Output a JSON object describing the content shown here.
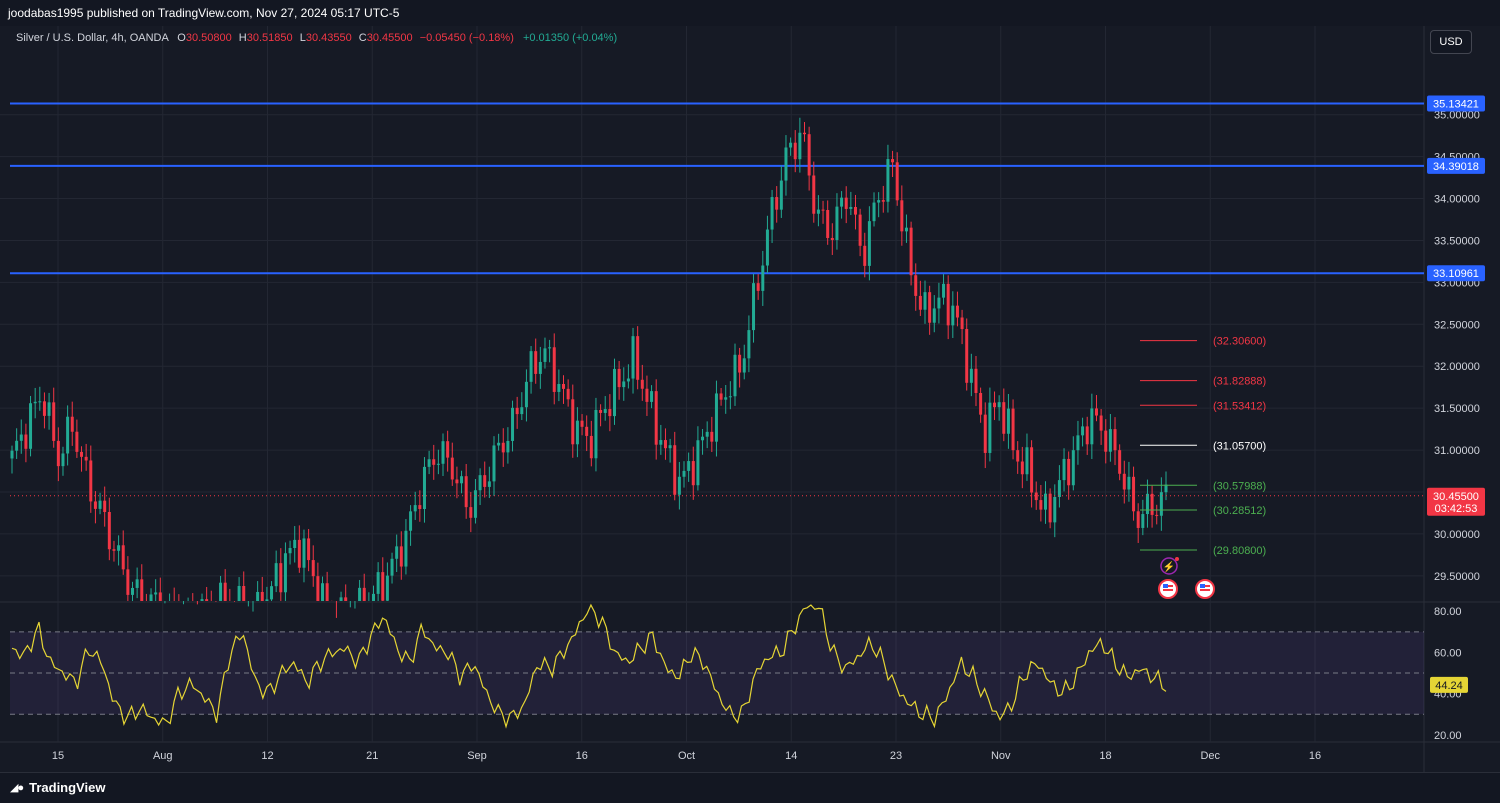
{
  "header": {
    "publisher": "joodabas1995 published on TradingView.com, Nov 27, 2024 05:17 UTC-5"
  },
  "legend": {
    "title": "Silver / U.S. Dollar, 4h, OANDA",
    "open_label": "O",
    "open": "30.50800",
    "high_label": "H",
    "high": "30.51850",
    "low_label": "L",
    "low": "30.43550",
    "close_label": "C",
    "close": "30.45500",
    "change": "−0.05450 (−0.18%)",
    "extra": "+0.01350 (+0.04%)"
  },
  "toolbar": {
    "currency": "USD"
  },
  "footer": {
    "brand": "TradingView"
  },
  "colors": {
    "background": "#161a25",
    "up": "#22ab94",
    "down": "#f23645",
    "blue_line": "#2962ff",
    "rsi": "#e5d535",
    "grid": "#232733"
  },
  "chart_data": [
    {
      "type": "candlestick",
      "symbol": "Silver / U.S. Dollar, 4h, OANDA",
      "y_axis": {
        "ylim": [
          29.2,
          35.7
        ],
        "ticks": [
          "29.50000",
          "30.00000",
          "30.50000",
          "31.00000",
          "31.50000",
          "32.00000",
          "32.50000",
          "33.00000",
          "33.50000",
          "34.00000",
          "34.50000",
          "35.00000"
        ]
      },
      "x_axis": {
        "ticks": [
          "15",
          "Aug",
          "12",
          "21",
          "Sep",
          "16",
          "Oct",
          "14",
          "23",
          "Nov",
          "18",
          "Dec",
          "16"
        ]
      },
      "price_path": [
        30.9,
        31.3,
        31.7,
        30.9,
        31.3,
        30.6,
        30.2,
        29.7,
        29.3,
        29.2,
        29.1,
        29.0,
        29.0,
        29.1,
        29.2,
        29.1,
        29.0,
        29.3,
        29.7,
        29.9,
        29.4,
        28.9,
        29.0,
        29.1,
        29.3,
        29.6,
        30.0,
        30.6,
        31.0,
        30.8,
        30.3,
        30.6,
        31.0,
        31.3,
        31.9,
        32.2,
        31.8,
        31.3,
        31.1,
        31.5,
        31.8,
        32.1,
        31.5,
        31.0,
        30.6,
        30.9,
        31.3,
        31.7,
        32.0,
        32.9,
        33.8,
        34.5,
        34.8,
        33.8,
        33.6,
        34.1,
        33.3,
        34.0,
        34.4,
        33.3,
        32.6,
        32.8,
        32.7,
        32.0,
        31.2,
        31.6,
        31.0,
        30.7,
        30.2,
        30.6,
        31.0,
        31.4,
        31.2,
        30.8,
        30.2,
        30.3,
        30.45
      ],
      "current_price": {
        "value": "30.45500",
        "countdown": "03:42:53"
      },
      "horizontal_lines": [
        {
          "label": "35.13421",
          "price": 35.13421
        },
        {
          "label": "34.39018",
          "price": 34.39018
        },
        {
          "label": "33.10961",
          "price": 33.10961
        }
      ],
      "levels": [
        {
          "label": "(32.30600)",
          "price": 32.306,
          "color": "#f23645"
        },
        {
          "label": "(31.82888)",
          "price": 31.82888,
          "color": "#f23645"
        },
        {
          "label": "(31.53412)",
          "price": 31.53412,
          "color": "#f23645"
        },
        {
          "label": "(31.05700)",
          "price": 31.057,
          "color": "#ffffff"
        },
        {
          "label": "(30.57988)",
          "price": 30.57988,
          "color": "#4caf50"
        },
        {
          "label": "(30.28512)",
          "price": 30.28512,
          "color": "#4caf50"
        },
        {
          "label": "(29.80800)",
          "price": 29.808,
          "color": "#4caf50"
        }
      ]
    },
    {
      "type": "line",
      "indicator": "RSI",
      "ylim": [
        17,
        84
      ],
      "ticks": [
        "20.00",
        "40.00",
        "60.00",
        "80.00"
      ],
      "bands": [
        30,
        50,
        70
      ],
      "current_value": "44.24",
      "path": [
        62,
        58,
        72,
        55,
        50,
        45,
        62,
        55,
        35,
        28,
        33,
        28,
        25,
        40,
        45,
        38,
        30,
        60,
        70,
        45,
        40,
        50,
        55,
        45,
        55,
        60,
        62,
        55,
        68,
        78,
        62,
        55,
        72,
        62,
        60,
        48,
        55,
        40,
        30,
        28,
        35,
        55,
        52,
        60,
        70,
        83,
        75,
        60,
        55,
        62,
        68,
        52,
        48,
        60,
        55,
        40,
        30,
        30,
        50,
        58,
        60,
        72,
        83,
        82,
        60,
        52,
        58,
        65,
        55,
        42,
        35,
        30,
        28,
        40,
        55,
        48,
        38,
        28,
        35,
        50,
        55,
        45,
        40,
        48,
        60,
        65,
        55,
        48,
        52,
        48,
        44
      ]
    }
  ]
}
